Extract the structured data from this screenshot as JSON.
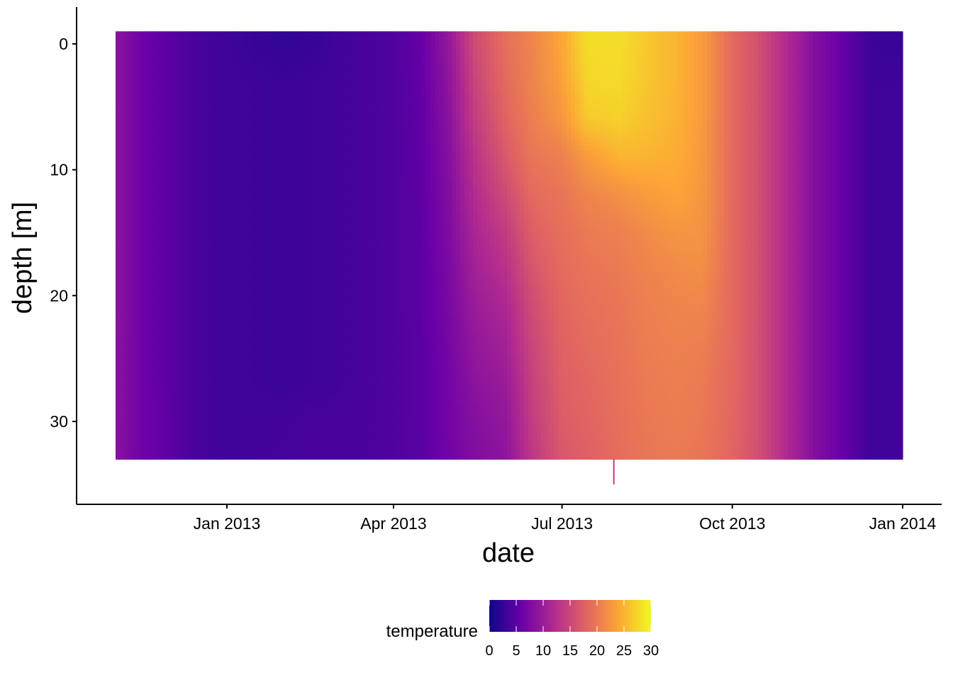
{
  "chart_data": {
    "type": "heatmap",
    "xlabel": "date",
    "ylabel": "depth [m]",
    "x_range": [
      "2012-10-25",
      "2014-01-05"
    ],
    "y_range": [
      0,
      33
    ],
    "y_reversed": true,
    "grid": false,
    "x_ticks": [
      {
        "date": "2013-01-01",
        "label": "Jan 2013"
      },
      {
        "date": "2013-04-01",
        "label": "Apr 2013"
      },
      {
        "date": "2013-07-01",
        "label": "Jul 2013"
      },
      {
        "date": "2013-10-01",
        "label": "Oct 2013"
      },
      {
        "date": "2014-01-01",
        "label": "Jan 2014"
      }
    ],
    "y_ticks": [
      {
        "value": 0,
        "label": "0"
      },
      {
        "value": 10,
        "label": "10"
      },
      {
        "value": 20,
        "label": "20"
      },
      {
        "value": 30,
        "label": "30"
      }
    ],
    "legend": {
      "title": "temperature",
      "position": "bottom",
      "range": [
        0,
        30
      ],
      "ticks": [
        {
          "value": 0,
          "label": "0"
        },
        {
          "value": 5,
          "label": "5"
        },
        {
          "value": 10,
          "label": "10"
        },
        {
          "value": 15,
          "label": "15"
        },
        {
          "value": 20,
          "label": "20"
        },
        {
          "value": 25,
          "label": "25"
        },
        {
          "value": 30,
          "label": "30"
        }
      ],
      "colors": [
        "#0d0887",
        "#6a00a8",
        "#b12a90",
        "#e16462",
        "#fca636",
        "#f0f921"
      ]
    },
    "profiles": [
      {
        "date": "2012-11-01",
        "temps": [
          9.0,
          9.0,
          9.0,
          9.0,
          9.0,
          9.0,
          9.0,
          9.0,
          8.8,
          8.8,
          8.8,
          8.6
        ]
      },
      {
        "date": "2012-11-15",
        "temps": [
          6.5,
          6.5,
          6.5,
          6.5,
          6.5,
          6.5,
          6.5,
          6.5,
          6.5,
          6.5,
          6.5,
          6.5
        ]
      },
      {
        "date": "2012-12-01",
        "temps": [
          5.0,
          5.0,
          5.0,
          5.0,
          5.0,
          5.0,
          5.0,
          5.0,
          5.0,
          5.0,
          5.2,
          5.2
        ]
      },
      {
        "date": "2012-12-15",
        "temps": [
          3.8,
          3.8,
          3.8,
          3.8,
          3.8,
          3.8,
          3.8,
          3.8,
          3.8,
          3.8,
          3.8,
          3.8
        ]
      },
      {
        "date": "2013-01-01",
        "temps": [
          3.3,
          3.3,
          3.3,
          3.3,
          3.3,
          3.3,
          3.3,
          3.3,
          3.3,
          3.3,
          3.3,
          3.3
        ]
      },
      {
        "date": "2013-01-15",
        "temps": [
          2.8,
          3.2,
          3.2,
          3.2,
          3.2,
          3.2,
          3.2,
          3.2,
          3.2,
          3.2,
          3.4,
          3.4
        ]
      },
      {
        "date": "2013-02-01",
        "temps": [
          2.4,
          3.0,
          3.0,
          3.0,
          3.0,
          3.0,
          3.0,
          3.0,
          3.0,
          3.0,
          3.5,
          3.6
        ]
      },
      {
        "date": "2013-02-15",
        "temps": [
          2.6,
          3.2,
          3.2,
          3.2,
          3.2,
          3.2,
          3.2,
          3.2,
          3.2,
          3.2,
          3.8,
          3.8
        ]
      },
      {
        "date": "2013-03-01",
        "temps": [
          3.3,
          3.4,
          3.4,
          3.4,
          3.4,
          3.4,
          3.4,
          3.4,
          3.4,
          3.4,
          3.8,
          3.8
        ]
      },
      {
        "date": "2013-03-15",
        "temps": [
          3.8,
          3.8,
          3.8,
          3.8,
          3.8,
          3.8,
          3.8,
          3.8,
          3.8,
          3.8,
          3.9,
          3.9
        ]
      },
      {
        "date": "2013-04-01",
        "temps": [
          4.3,
          4.3,
          4.3,
          4.3,
          4.3,
          4.3,
          4.3,
          4.3,
          4.3,
          4.3,
          4.3,
          4.3
        ]
      },
      {
        "date": "2013-04-15",
        "temps": [
          5.6,
          5.4,
          5.3,
          5.2,
          5.1,
          5.0,
          5.0,
          5.0,
          4.9,
          4.9,
          4.9,
          4.8
        ]
      },
      {
        "date": "2013-05-01",
        "temps": [
          9.5,
          9.0,
          8.6,
          8.3,
          8.0,
          7.7,
          7.4,
          7.2,
          7.0,
          6.8,
          6.7,
          6.6
        ]
      },
      {
        "date": "2013-05-15",
        "temps": [
          15.5,
          14.8,
          14.0,
          13.0,
          12.2,
          11.4,
          10.7,
          10.0,
          9.4,
          8.8,
          8.3,
          7.9
        ]
      },
      {
        "date": "2013-06-01",
        "temps": [
          19.0,
          18.6,
          18.0,
          17.0,
          15.5,
          14.0,
          12.8,
          11.6,
          10.8,
          10.0,
          9.4,
          9.0
        ]
      },
      {
        "date": "2013-06-15",
        "temps": [
          21.0,
          20.8,
          20.4,
          19.6,
          18.6,
          17.5,
          16.5,
          15.6,
          15.0,
          14.5,
          14.0,
          13.5
        ]
      },
      {
        "date": "2013-07-01",
        "temps": [
          24.0,
          23.5,
          22.5,
          20.5,
          19.5,
          19.0,
          18.6,
          18.2,
          17.8,
          17.5,
          17.2,
          16.8
        ]
      },
      {
        "date": "2013-07-15",
        "temps": [
          28.0,
          27.5,
          26.5,
          23.0,
          21.0,
          20.0,
          19.5,
          19.0,
          18.6,
          18.2,
          18.0,
          17.5
        ]
      },
      {
        "date": "2013-08-01",
        "temps": [
          28.0,
          27.8,
          27.0,
          25.0,
          22.0,
          20.5,
          20.0,
          19.6,
          19.4,
          19.2,
          19.0,
          18.8
        ]
      },
      {
        "date": "2013-08-15",
        "temps": [
          26.5,
          26.4,
          26.0,
          25.0,
          23.0,
          21.5,
          20.8,
          20.4,
          20.2,
          20.0,
          19.8,
          19.6
        ]
      },
      {
        "date": "2013-09-01",
        "temps": [
          25.0,
          25.0,
          24.8,
          24.4,
          23.8,
          22.5,
          21.5,
          21.0,
          20.6,
          20.4,
          20.2,
          20.0
        ]
      },
      {
        "date": "2013-09-15",
        "temps": [
          23.0,
          23.0,
          22.9,
          22.8,
          22.6,
          22.3,
          21.8,
          21.0,
          20.4,
          20.0,
          19.8,
          19.6
        ]
      },
      {
        "date": "2013-10-01",
        "temps": [
          18.5,
          18.5,
          18.5,
          18.5,
          18.5,
          18.5,
          18.5,
          18.5,
          18.4,
          18.3,
          18.2,
          18.0
        ]
      },
      {
        "date": "2013-10-15",
        "temps": [
          16.0,
          16.0,
          16.0,
          16.0,
          16.0,
          16.0,
          16.0,
          16.0,
          16.0,
          16.0,
          16.0,
          16.0
        ]
      },
      {
        "date": "2013-11-01",
        "temps": [
          11.5,
          11.5,
          11.5,
          11.5,
          11.5,
          11.5,
          11.5,
          11.5,
          11.5,
          11.5,
          11.5,
          11.5
        ]
      },
      {
        "date": "2013-11-15",
        "temps": [
          8.0,
          8.0,
          8.0,
          8.0,
          8.0,
          8.0,
          8.0,
          8.0,
          8.0,
          8.0,
          8.0,
          8.0
        ]
      },
      {
        "date": "2013-12-01",
        "temps": [
          5.5,
          5.5,
          5.5,
          5.5,
          5.5,
          5.5,
          5.5,
          5.5,
          5.5,
          5.5,
          5.5,
          5.5
        ]
      },
      {
        "date": "2013-12-15",
        "temps": [
          3.0,
          3.2,
          3.2,
          3.2,
          3.2,
          3.2,
          3.2,
          3.2,
          3.2,
          3.2,
          3.2,
          3.2
        ]
      },
      {
        "date": "2014-01-01",
        "temps": [
          2.8,
          3.2,
          3.2,
          3.2,
          3.2,
          3.2,
          3.2,
          3.2,
          3.4,
          3.4,
          3.5,
          3.5
        ]
      }
    ],
    "depths": [
      0,
      3,
      6,
      9,
      12,
      15,
      18,
      21,
      24,
      27,
      30,
      33
    ],
    "outlier": {
      "date": "2013-07-29",
      "depth_range": [
        33,
        35
      ],
      "temp": 14
    }
  }
}
